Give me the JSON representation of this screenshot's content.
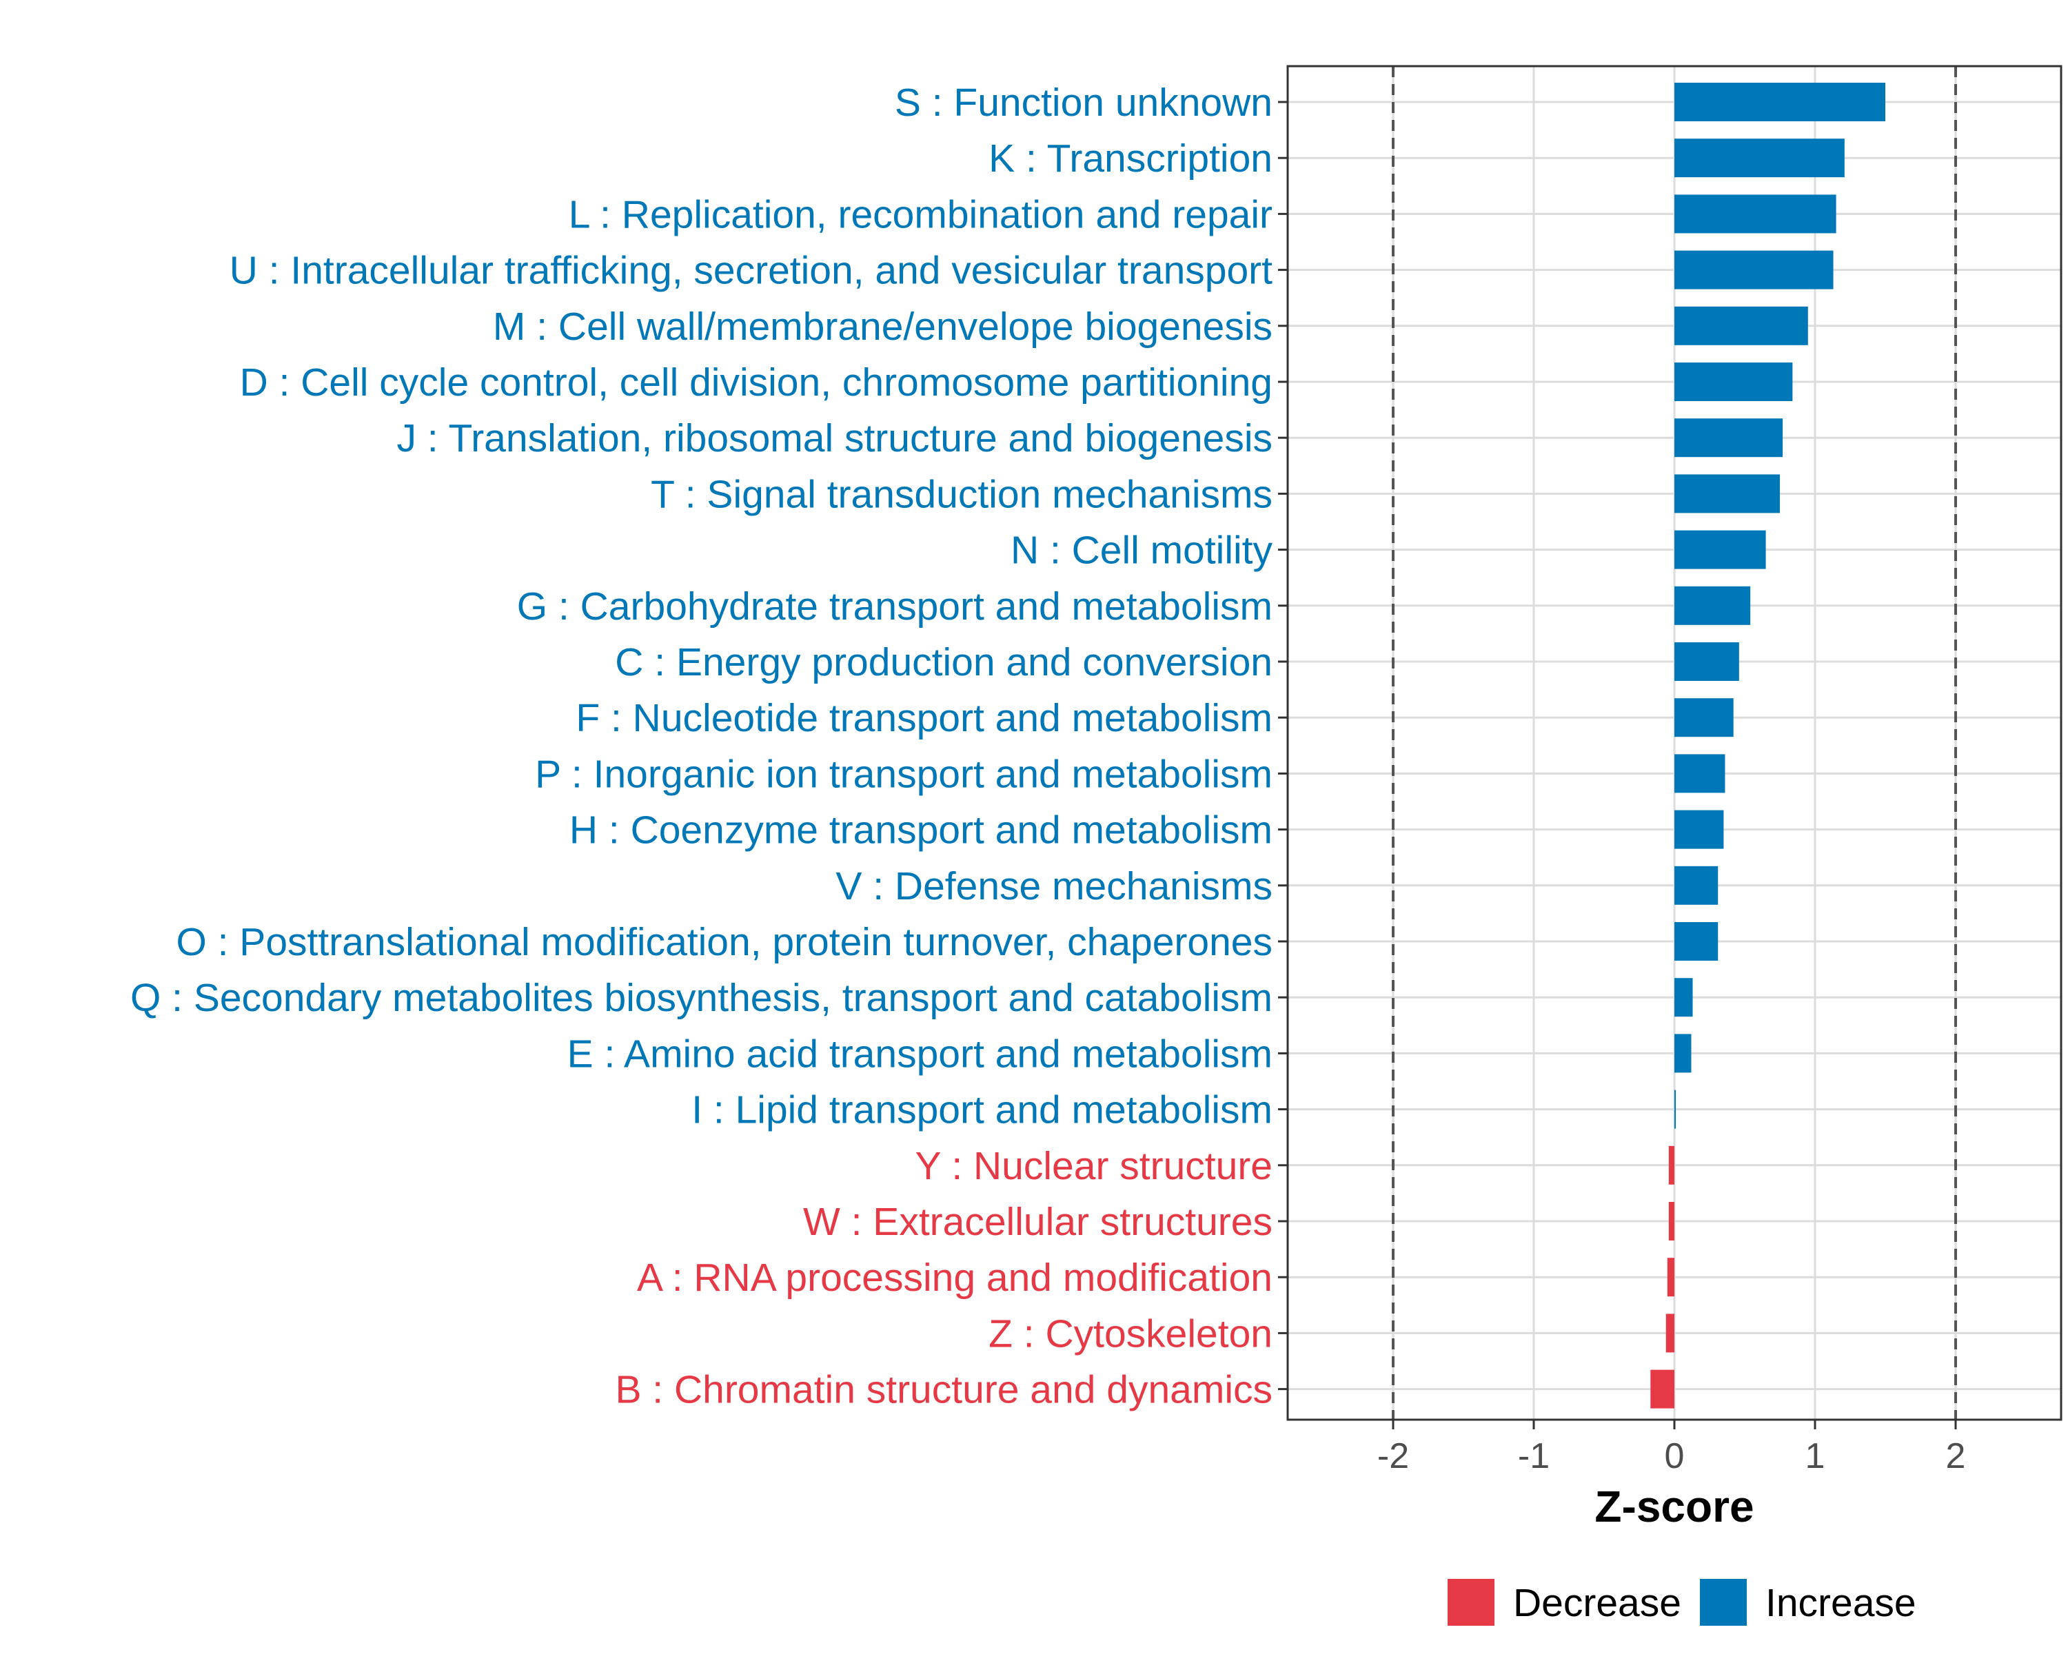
{
  "chart_data": {
    "type": "bar",
    "orientation": "horizontal",
    "title": "",
    "xlabel": "Z-score",
    "ylabel": "",
    "xlim": [
      -2.75,
      2.75
    ],
    "x_ticks": [
      -2,
      -1,
      0,
      1,
      2
    ],
    "x_tick_labels": [
      "-2",
      "-1",
      "0",
      "1",
      "2"
    ],
    "reference_lines": [
      -2,
      2
    ],
    "grid": true,
    "categories": [
      "S : Function unknown",
      "K : Transcription",
      "L : Replication, recombination and repair",
      "U : Intracellular trafficking, secretion, and vesicular transport",
      "M : Cell wall/membrane/envelope biogenesis",
      "D : Cell cycle control, cell division, chromosome partitioning",
      "J : Translation, ribosomal structure and biogenesis",
      "T : Signal transduction mechanisms",
      "N : Cell motility",
      "G : Carbohydrate transport and metabolism",
      "C : Energy production and conversion",
      "F : Nucleotide transport and metabolism",
      "P : Inorganic ion transport and metabolism",
      "H : Coenzyme transport and metabolism",
      "V : Defense mechanisms",
      "O : Posttranslational modification, protein turnover, chaperones",
      "Q : Secondary metabolites biosynthesis, transport and catabolism",
      "E : Amino acid transport and metabolism",
      "I : Lipid transport and metabolism",
      "Y : Nuclear structure",
      "W : Extracellular structures",
      "A : RNA processing and modification",
      "Z : Cytoskeleton",
      "B : Chromatin structure and dynamics"
    ],
    "values": [
      1.5,
      1.21,
      1.15,
      1.13,
      0.95,
      0.84,
      0.77,
      0.75,
      0.65,
      0.54,
      0.46,
      0.42,
      0.36,
      0.35,
      0.31,
      0.31,
      0.13,
      0.12,
      0.01,
      -0.04,
      -0.04,
      -0.05,
      -0.06,
      -0.17
    ],
    "groups": [
      "Increase",
      "Increase",
      "Increase",
      "Increase",
      "Increase",
      "Increase",
      "Increase",
      "Increase",
      "Increase",
      "Increase",
      "Increase",
      "Increase",
      "Increase",
      "Increase",
      "Increase",
      "Increase",
      "Increase",
      "Increase",
      "Increase",
      "Decrease",
      "Decrease",
      "Decrease",
      "Decrease",
      "Decrease"
    ],
    "legend": {
      "placement": "bottom",
      "entries": [
        {
          "label": "Decrease",
          "color": "#e63946"
        },
        {
          "label": "Increase",
          "color": "#0077b6"
        }
      ]
    },
    "colors": {
      "Increase": "#0077b6",
      "Decrease": "#e63946",
      "grid": "#dcdcdc",
      "panel_border": "#333333",
      "reference_line": "#555555"
    }
  }
}
